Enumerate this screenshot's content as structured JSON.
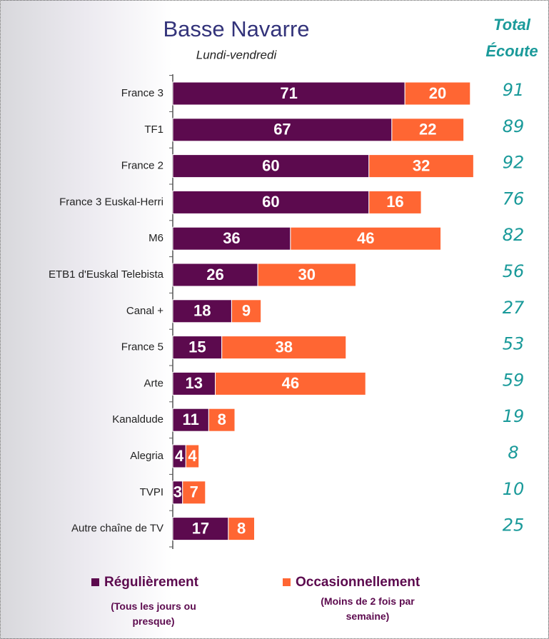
{
  "chart_data": {
    "type": "stacked-bar-horizontal",
    "title": "Basse Navarre",
    "subtitle": "Lundi-vendredi",
    "totals_title": [
      "Total",
      "Écoute"
    ],
    "categories": [
      "France 3",
      "TF1",
      "France 2",
      "France 3 Euskal-Herri",
      "M6",
      "ETB1 d'Euskal Telebista",
      "Canal +",
      "France 5",
      "Arte",
      "Kanaldude",
      "Alegria",
      "TVPI",
      "Autre chaîne de TV"
    ],
    "series": [
      {
        "name": "Régulièrement",
        "note": "(Tous les jours ou presque)",
        "color": "#5c0a4e",
        "values": [
          71,
          67,
          60,
          60,
          36,
          26,
          18,
          15,
          13,
          11,
          4,
          3,
          17
        ]
      },
      {
        "name": "Occasionnellement",
        "note": "(Moins de 2 fois par semaine)",
        "color": "#ff6633",
        "values": [
          20,
          22,
          32,
          16,
          46,
          30,
          9,
          38,
          46,
          8,
          4,
          7,
          8
        ]
      }
    ],
    "totals": [
      91,
      89,
      92,
      76,
      82,
      56,
      27,
      53,
      59,
      19,
      8,
      10,
      25
    ]
  }
}
